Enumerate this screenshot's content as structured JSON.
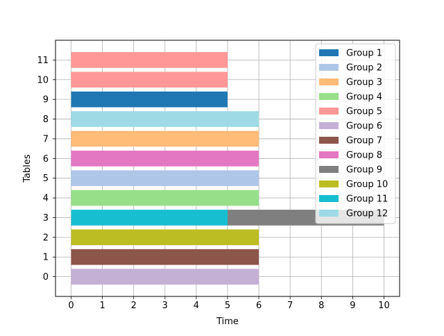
{
  "chart_data": {
    "type": "bar",
    "orientation": "horizontal",
    "title": "",
    "xlabel": "Time",
    "ylabel": "Tables",
    "xlim": [
      -0.5,
      10.5
    ],
    "ylim": [
      -1,
      12
    ],
    "xticks": [
      0,
      1,
      2,
      3,
      4,
      5,
      6,
      7,
      8,
      9,
      10
    ],
    "yticks": [
      0,
      1,
      2,
      3,
      4,
      5,
      6,
      7,
      8,
      9,
      10,
      11
    ],
    "grid": true,
    "legend_position": "top-right",
    "series": [
      {
        "name": "Group 1",
        "color": "#1f77b4",
        "bars": [
          {
            "table": 9,
            "start": 0,
            "end": 5
          }
        ]
      },
      {
        "name": "Group 2",
        "color": "#aec7e8",
        "bars": [
          {
            "table": 5,
            "start": 0,
            "end": 6
          }
        ]
      },
      {
        "name": "Group 3",
        "color": "#ffbb78",
        "bars": [
          {
            "table": 7,
            "start": 0,
            "end": 6
          }
        ]
      },
      {
        "name": "Group 4",
        "color": "#98df8a",
        "bars": [
          {
            "table": 4,
            "start": 0,
            "end": 6
          }
        ]
      },
      {
        "name": "Group 5",
        "color": "#ff9896",
        "bars": [
          {
            "table": 10,
            "start": 0,
            "end": 5
          },
          {
            "table": 11,
            "start": 0,
            "end": 5
          }
        ]
      },
      {
        "name": "Group 6",
        "color": "#c5b0d5",
        "bars": [
          {
            "table": 0,
            "start": 0,
            "end": 6
          }
        ]
      },
      {
        "name": "Group 7",
        "color": "#8c564b",
        "bars": [
          {
            "table": 1,
            "start": 0,
            "end": 6
          }
        ]
      },
      {
        "name": "Group 8",
        "color": "#e377c2",
        "bars": [
          {
            "table": 6,
            "start": 0,
            "end": 6
          }
        ]
      },
      {
        "name": "Group 9",
        "color": "#7f7f7f",
        "bars": [
          {
            "table": 3,
            "start": 5,
            "end": 10
          }
        ]
      },
      {
        "name": "Group 10",
        "color": "#bcbd22",
        "bars": [
          {
            "table": 2,
            "start": 0,
            "end": 6
          }
        ]
      },
      {
        "name": "Group 11",
        "color": "#17becf",
        "bars": [
          {
            "table": 3,
            "start": 0,
            "end": 5
          }
        ]
      },
      {
        "name": "Group 12",
        "color": "#9edae5",
        "bars": [
          {
            "table": 8,
            "start": 0,
            "end": 6
          }
        ]
      }
    ]
  }
}
